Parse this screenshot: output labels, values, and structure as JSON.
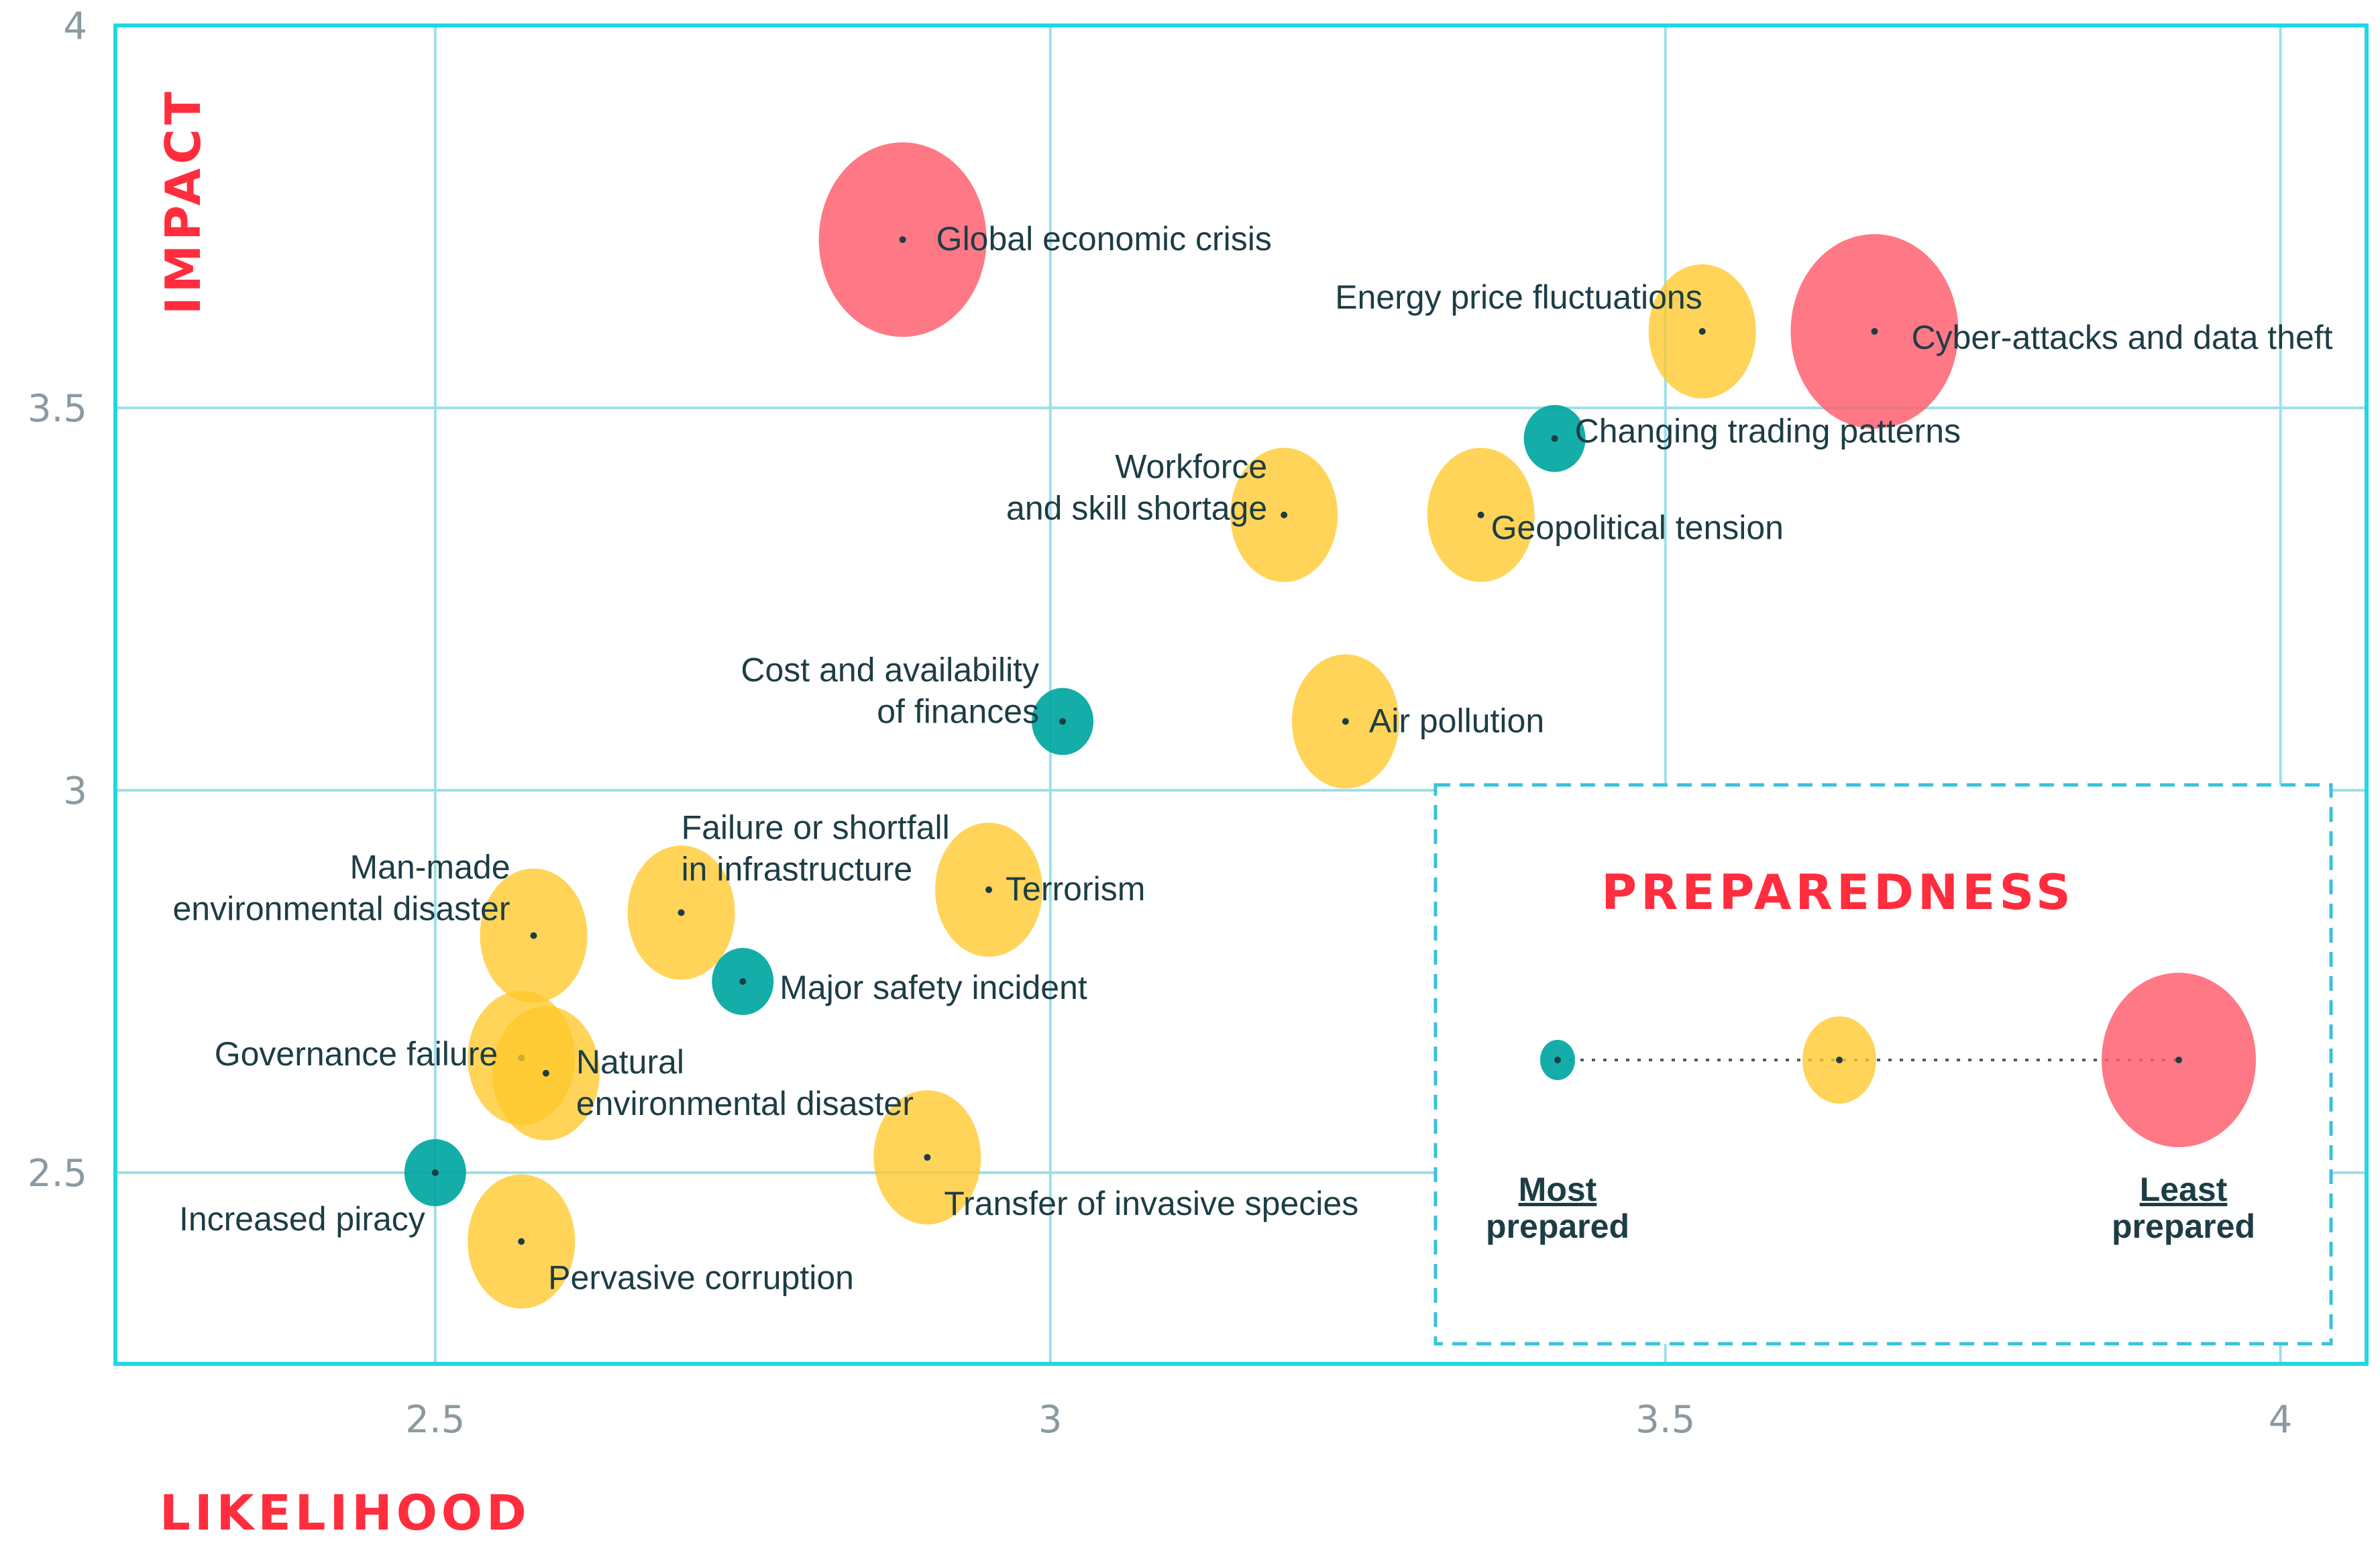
{
  "chart_data": {
    "type": "scatter",
    "subtype": "bubble",
    "xlabel": "LIKELIHOOD",
    "ylabel": "IMPACT",
    "xlim": [
      2.24,
      4.07
    ],
    "ylim": [
      2.25,
      4.0
    ],
    "xticks": [
      "2.5",
      "3",
      "3.5",
      "4"
    ],
    "yticks": [
      "2.5",
      "3",
      "3.5",
      "4"
    ],
    "xtick_values": [
      2.5,
      3.0,
      3.5,
      4.0
    ],
    "ytick_values": [
      2.5,
      3.0,
      3.5,
      4.0
    ],
    "grid": true,
    "colors": {
      "most": "#00a6a0",
      "mid": "#ffc82a",
      "least": "#ff5a6a",
      "grid": "#9be0ea",
      "frame": "#1ed8e2",
      "title": "#ff2d3d",
      "text": "#1d3d44"
    },
    "points": [
      {
        "name": "Global economic crisis",
        "lines": [
          "Global economic crisis"
        ],
        "x": 2.88,
        "y": 3.72,
        "preparedness": "least"
      },
      {
        "name": "Cyber-attacks and data theft",
        "lines": [
          "Cyber-attacks and data theft"
        ],
        "x": 3.67,
        "y": 3.6,
        "preparedness": "least"
      },
      {
        "name": "Energy price fluctuations",
        "lines": [
          "Energy price fluctuations"
        ],
        "x": 3.53,
        "y": 3.6,
        "preparedness": "mid"
      },
      {
        "name": "Changing trading patterns",
        "lines": [
          "Changing trading patterns"
        ],
        "x": 3.41,
        "y": 3.46,
        "preparedness": "most"
      },
      {
        "name": "Workforce and skill shortage",
        "lines": [
          "Workforce",
          "and skill shortage"
        ],
        "x": 3.19,
        "y": 3.36,
        "preparedness": "mid"
      },
      {
        "name": "Geopolitical tension",
        "lines": [
          "Geopolitical tension"
        ],
        "x": 3.35,
        "y": 3.36,
        "preparedness": "mid"
      },
      {
        "name": "Cost and availability of finances",
        "lines": [
          "Cost and availability",
          "of finances"
        ],
        "x": 3.01,
        "y": 3.09,
        "preparedness": "most"
      },
      {
        "name": "Air pollution",
        "lines": [
          "Air pollution"
        ],
        "x": 3.24,
        "y": 3.09,
        "preparedness": "mid"
      },
      {
        "name": "Man-made environmental disaster",
        "lines": [
          "Man-made",
          "environmental disaster"
        ],
        "x": 2.58,
        "y": 2.81,
        "preparedness": "mid"
      },
      {
        "name": "Failure or shortfall in infrastructure",
        "lines": [
          "Failure or shortfall",
          "in infrastructure"
        ],
        "x": 2.7,
        "y": 2.84,
        "preparedness": "mid"
      },
      {
        "name": "Terrorism",
        "lines": [
          "Terrorism"
        ],
        "x": 2.95,
        "y": 2.87,
        "preparedness": "mid"
      },
      {
        "name": "Major safety incident",
        "lines": [
          "Major safety incident"
        ],
        "x": 2.75,
        "y": 2.75,
        "preparedness": "most"
      },
      {
        "name": "Governance failure",
        "lines": [
          "Governance failure"
        ],
        "x": 2.57,
        "y": 2.65,
        "preparedness": "mid"
      },
      {
        "name": "Natural environmental disaster",
        "lines": [
          "Natural",
          "environmental disaster"
        ],
        "x": 2.59,
        "y": 2.63,
        "preparedness": "mid"
      },
      {
        "name": "Increased piracy",
        "lines": [
          "Increased piracy"
        ],
        "x": 2.5,
        "y": 2.5,
        "preparedness": "most"
      },
      {
        "name": "Transfer of invasive species",
        "lines": [
          "Transfer of invasive species"
        ],
        "x": 2.9,
        "y": 2.52,
        "preparedness": "mid"
      },
      {
        "name": "Pervasive corruption",
        "lines": [
          "Pervasive corruption"
        ],
        "x": 2.57,
        "y": 2.41,
        "preparedness": "mid"
      }
    ],
    "legend": {
      "title": "PREPAREDNESS",
      "placement": "bottom-right",
      "most_lines": [
        "Most",
        "prepared"
      ],
      "least_lines": [
        "Least",
        "prepared"
      ]
    }
  }
}
